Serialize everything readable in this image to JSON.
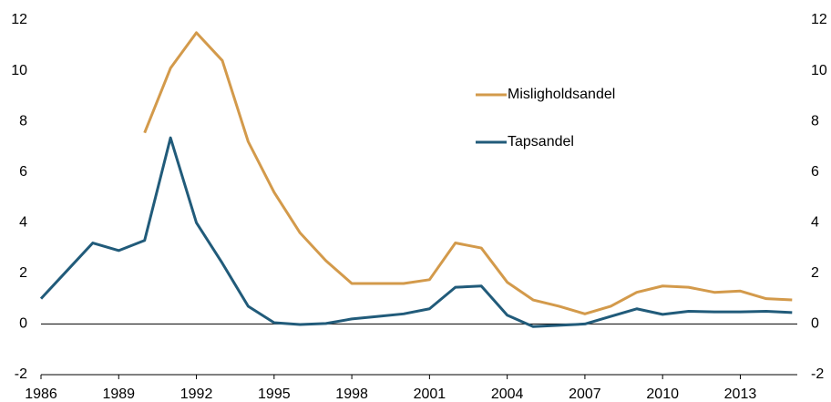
{
  "chart_data": {
    "type": "line",
    "x": [
      1986,
      1987,
      1988,
      1989,
      1990,
      1991,
      1992,
      1993,
      1994,
      1995,
      1996,
      1997,
      1998,
      1999,
      2000,
      2001,
      2002,
      2003,
      2004,
      2005,
      2006,
      2007,
      2008,
      2009,
      2010,
      2011,
      2012,
      2013,
      2014,
      2015
    ],
    "series": [
      {
        "name": "Misligholdsandel",
        "color": "#d39a4b",
        "values": [
          null,
          null,
          null,
          null,
          7.55,
          10.1,
          11.5,
          10.4,
          7.2,
          5.2,
          3.6,
          2.5,
          1.6,
          1.6,
          1.6,
          1.75,
          3.2,
          3.0,
          1.65,
          0.95,
          0.7,
          0.4,
          0.7,
          1.25,
          1.5,
          1.45,
          1.25,
          1.3,
          1.0,
          0.95
        ]
      },
      {
        "name": "Tapsandel",
        "color": "#215b7a",
        "values": [
          1.0,
          2.1,
          3.2,
          2.9,
          3.3,
          7.35,
          4.0,
          2.4,
          0.7,
          0.05,
          -0.02,
          0.02,
          0.2,
          0.3,
          0.4,
          0.6,
          1.45,
          1.5,
          0.35,
          -0.1,
          -0.05,
          0.0,
          0.3,
          0.6,
          0.38,
          0.5,
          0.48,
          0.48,
          0.5,
          0.45
        ]
      }
    ],
    "xlim": [
      1986,
      2015.2
    ],
    "xticks": [
      1986,
      1989,
      1992,
      1995,
      1998,
      2001,
      2004,
      2007,
      2010,
      2013
    ],
    "ylim": [
      -2,
      12
    ],
    "yticks": [
      -2,
      0,
      2,
      4,
      6,
      8,
      10,
      12
    ],
    "y2lim": [
      -2,
      12
    ],
    "y2ticks": [
      -2,
      0,
      2,
      4,
      6,
      8,
      10,
      12
    ]
  }
}
